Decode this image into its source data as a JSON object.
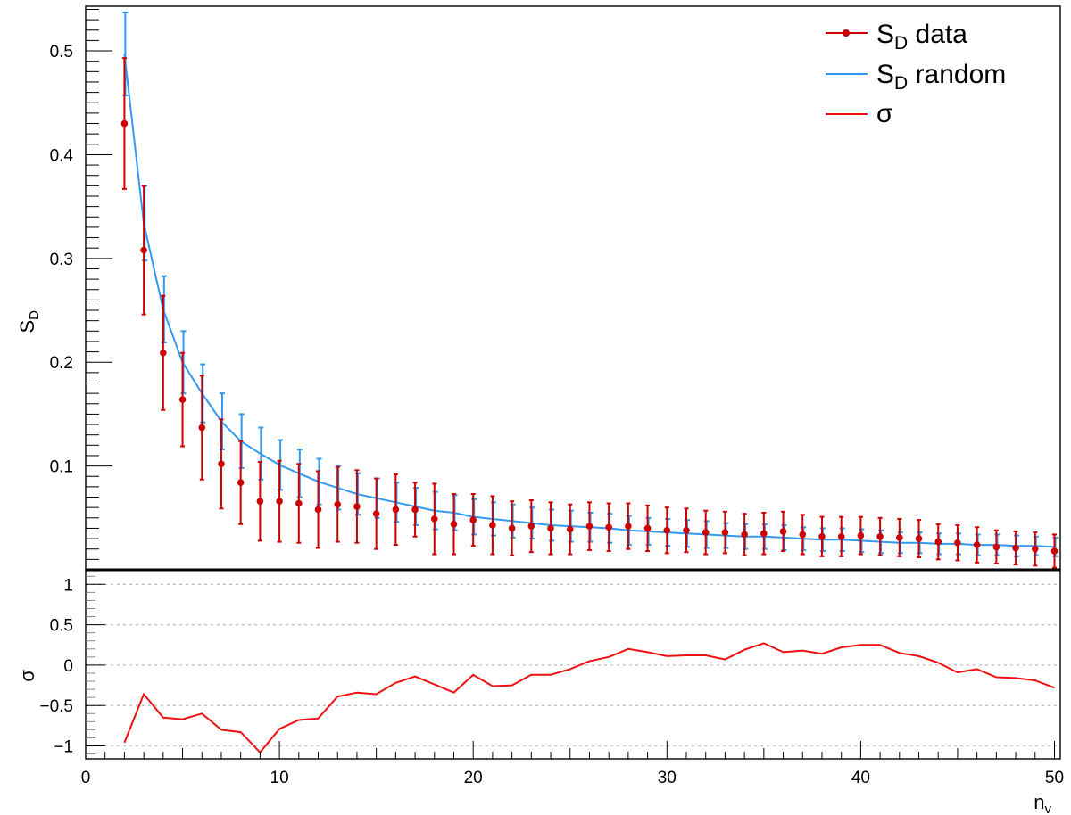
{
  "chart_data": {
    "type": "line",
    "title": "",
    "xlabel": "n",
    "xlabel_sub": "v",
    "x": [
      2,
      3,
      4,
      5,
      6,
      7,
      8,
      9,
      10,
      11,
      12,
      13,
      14,
      15,
      16,
      17,
      18,
      19,
      20,
      21,
      22,
      23,
      24,
      25,
      26,
      27,
      28,
      29,
      30,
      31,
      32,
      33,
      34,
      35,
      36,
      37,
      38,
      39,
      40,
      41,
      42,
      43,
      44,
      45,
      46,
      47,
      48,
      49,
      50
    ],
    "xlim": [
      0,
      50.3
    ],
    "x_ticks": [
      0,
      10,
      20,
      30,
      40,
      50
    ],
    "x_tick_labels": [
      "0",
      "10",
      "20",
      "30",
      "40",
      "50"
    ],
    "panels": [
      {
        "id": "top",
        "ylabel": "S",
        "ylabel_sub": "D",
        "ylim": [
          0.0,
          0.543
        ],
        "y_ticks": [
          0.1,
          0.2,
          0.3,
          0.4,
          0.5
        ],
        "y_tick_labels": [
          "0.1",
          "0.2",
          "0.3",
          "0.4",
          "0.5"
        ],
        "grid": false,
        "series": [
          {
            "name": "S",
            "name_sub": "D",
            "name_rest": " data",
            "color": "#cc0000",
            "style": "points-with-errors",
            "values": [
              0.43,
              0.308,
              0.209,
              0.164,
              0.137,
              0.102,
              0.084,
              0.066,
              0.066,
              0.064,
              0.058,
              0.063,
              0.061,
              0.054,
              0.058,
              0.058,
              0.049,
              0.044,
              0.048,
              0.043,
              0.04,
              0.042,
              0.04,
              0.039,
              0.042,
              0.041,
              0.042,
              0.04,
              0.038,
              0.038,
              0.036,
              0.036,
              0.034,
              0.035,
              0.037,
              0.034,
              0.032,
              0.032,
              0.033,
              0.032,
              0.031,
              0.03,
              0.027,
              0.026,
              0.024,
              0.022,
              0.021,
              0.02,
              0.018
            ],
            "errors": [
              0.063,
              0.062,
              0.055,
              0.045,
              0.05,
              0.043,
              0.04,
              0.038,
              0.039,
              0.038,
              0.037,
              0.036,
              0.035,
              0.034,
              0.034,
              0.026,
              0.034,
              0.029,
              0.025,
              0.028,
              0.026,
              0.025,
              0.025,
              0.024,
              0.023,
              0.023,
              0.022,
              0.022,
              0.022,
              0.021,
              0.021,
              0.02,
              0.02,
              0.02,
              0.019,
              0.019,
              0.019,
              0.019,
              0.018,
              0.018,
              0.018,
              0.018,
              0.017,
              0.017,
              0.017,
              0.016,
              0.016,
              0.016,
              0.016
            ]
          },
          {
            "name": "S",
            "name_sub": "D",
            "name_rest": " random",
            "color": "#3399ee",
            "style": "line-with-errors",
            "values": [
              0.497,
              0.334,
              0.251,
              0.2,
              0.17,
              0.143,
              0.124,
              0.112,
              0.101,
              0.093,
              0.085,
              0.079,
              0.073,
              0.069,
              0.065,
              0.061,
              0.057,
              0.055,
              0.051,
              0.049,
              0.047,
              0.045,
              0.043,
              0.042,
              0.041,
              0.04,
              0.038,
              0.037,
              0.036,
              0.035,
              0.034,
              0.033,
              0.032,
              0.032,
              0.031,
              0.03,
              0.029,
              0.029,
              0.028,
              0.027,
              0.026,
              0.026,
              0.025,
              0.025,
              0.024,
              0.024,
              0.023,
              0.023,
              0.022
            ],
            "errors": [
              0.04,
              0.036,
              0.032,
              0.03,
              0.028,
              0.027,
              0.026,
              0.025,
              0.024,
              0.023,
              0.022,
              0.021,
              0.02,
              0.019,
              0.019,
              0.018,
              0.018,
              0.017,
              0.017,
              0.016,
              0.016,
              0.015,
              0.015,
              0.015,
              0.014,
              0.014,
              0.014,
              0.013,
              0.013,
              0.013,
              0.013,
              0.012,
              0.012,
              0.012,
              0.012,
              0.011,
              0.011,
              0.011,
              0.011,
              0.011,
              0.01,
              0.01,
              0.01,
              0.01,
              0.01,
              0.01,
              0.01,
              0.009,
              0.009
            ]
          }
        ]
      },
      {
        "id": "bottom",
        "ylabel": "σ",
        "ylim": [
          -1.16,
          1.18
        ],
        "y_ticks": [
          -1,
          -0.5,
          0,
          0.5,
          1
        ],
        "y_tick_labels": [
          "−1",
          "−0.5",
          "0",
          "0.5",
          "1"
        ],
        "grid_lines_at": [
          -1,
          -0.5,
          0,
          0.5,
          1
        ],
        "grid": true,
        "series": [
          {
            "name": "σ",
            "color": "#ee1111",
            "style": "line",
            "values": [
              -0.96,
              -0.36,
              -0.65,
              -0.67,
              -0.6,
              -0.8,
              -0.83,
              -1.08,
              -0.79,
              -0.68,
              -0.66,
              -0.39,
              -0.34,
              -0.36,
              -0.22,
              -0.14,
              -0.24,
              -0.34,
              -0.12,
              -0.26,
              -0.25,
              -0.12,
              -0.12,
              -0.05,
              0.05,
              0.1,
              0.2,
              0.16,
              0.11,
              0.12,
              0.12,
              0.07,
              0.19,
              0.27,
              0.16,
              0.18,
              0.14,
              0.22,
              0.25,
              0.25,
              0.15,
              0.11,
              0.03,
              -0.09,
              -0.05,
              -0.15,
              -0.16,
              -0.19,
              -0.28
            ]
          }
        ]
      }
    ],
    "legend": {
      "placement": "top-right"
    }
  }
}
